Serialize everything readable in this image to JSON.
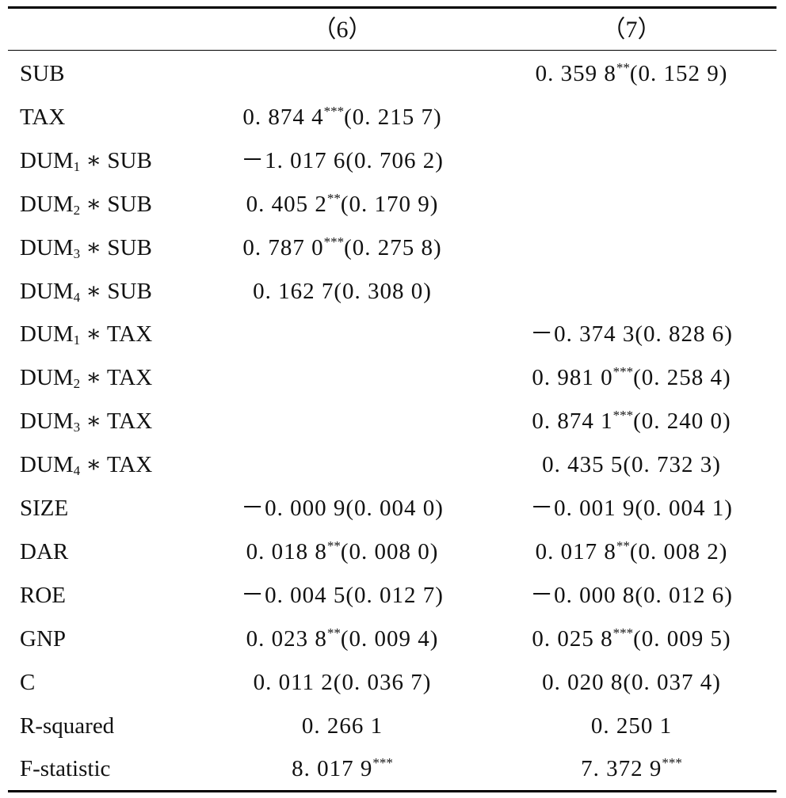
{
  "header": {
    "col6": "（6）",
    "col7": "（7）"
  },
  "rows": [
    {
      "name": "SUB",
      "c6": "",
      "c6s": "",
      "c6se": "",
      "c7": "0. 359 8",
      "c7s": "**",
      "c7se": "(0. 152 9)"
    },
    {
      "name": "TAX",
      "c6": "0. 874 4",
      "c6s": "***",
      "c6se": "(0. 215 7)",
      "c7": "",
      "c7s": "",
      "c7se": ""
    },
    {
      "name": "DUM",
      "sub": "1",
      "tail": " ∗ SUB",
      "c6": "－1. 017 6",
      "c6s": "",
      "c6se": "(0. 706 2)",
      "c7": "",
      "c7s": "",
      "c7se": ""
    },
    {
      "name": "DUM",
      "sub": "2",
      "tail": " ∗ SUB",
      "c6": "0. 405 2",
      "c6s": "**",
      "c6se": "(0. 170 9)",
      "c7": "",
      "c7s": "",
      "c7se": ""
    },
    {
      "name": "DUM",
      "sub": "3",
      "tail": " ∗ SUB",
      "c6": "0. 787 0",
      "c6s": "***",
      "c6se": "(0. 275 8)",
      "c7": "",
      "c7s": "",
      "c7se": ""
    },
    {
      "name": "DUM",
      "sub": "4",
      "tail": " ∗ SUB",
      "c6": "0. 162 7",
      "c6s": "",
      "c6se": "(0. 308 0)",
      "c7": "",
      "c7s": "",
      "c7se": ""
    },
    {
      "name": "DUM",
      "sub": "1",
      "tail": " ∗ TAX",
      "c6": "",
      "c6s": "",
      "c6se": "",
      "c7": "－0. 374 3",
      "c7s": "",
      "c7se": "(0. 828 6)"
    },
    {
      "name": "DUM",
      "sub": "2",
      "tail": " ∗ TAX",
      "c6": "",
      "c6s": "",
      "c6se": "",
      "c7": "0. 981 0",
      "c7s": "***",
      "c7se": "(0. 258 4)"
    },
    {
      "name": "DUM",
      "sub": "3",
      "tail": " ∗ TAX",
      "c6": "",
      "c6s": "",
      "c6se": "",
      "c7": "0. 874 1",
      "c7s": "***",
      "c7se": "(0. 240 0)"
    },
    {
      "name": "DUM",
      "sub": "4",
      "tail": " ∗ TAX",
      "c6": "",
      "c6s": "",
      "c6se": "",
      "c7": "0. 435 5",
      "c7s": "",
      "c7se": "(0. 732 3)"
    },
    {
      "name": "SIZE",
      "c6": "－0. 000 9",
      "c6s": "",
      "c6se": "(0. 004 0)",
      "c7": "－0. 001 9",
      "c7s": "",
      "c7se": "(0. 004 1)"
    },
    {
      "name": "DAR",
      "c6": "0. 018 8",
      "c6s": "**",
      "c6se": "(0. 008 0)",
      "c7": "0. 017 8",
      "c7s": "**",
      "c7se": "(0. 008 2)"
    },
    {
      "name": "ROE",
      "c6": "－0. 004 5",
      "c6s": "",
      "c6se": "(0. 012 7)",
      "c7": "－0. 000 8",
      "c7s": "",
      "c7se": "(0. 012 6)"
    },
    {
      "name": "GNP",
      "c6": "0. 023 8",
      "c6s": "**",
      "c6se": "(0. 009 4)",
      "c7": "0. 025 8",
      "c7s": "***",
      "c7se": "(0. 009 5)"
    },
    {
      "name": "C",
      "c6": "0. 011 2",
      "c6s": "",
      "c6se": "(0. 036 7)",
      "c7": "0. 020 8",
      "c7s": "",
      "c7se": "(0. 037 4)"
    },
    {
      "name": "R-squared",
      "c6": "0. 266 1",
      "c6s": "",
      "c6se": "",
      "c7": "0. 250 1",
      "c7s": "",
      "c7se": ""
    },
    {
      "name": "F-statistic",
      "c6": "8. 017 9",
      "c6s": "***",
      "c6se": "",
      "c7": "7. 372 9",
      "c7s": "***",
      "c7se": ""
    }
  ]
}
